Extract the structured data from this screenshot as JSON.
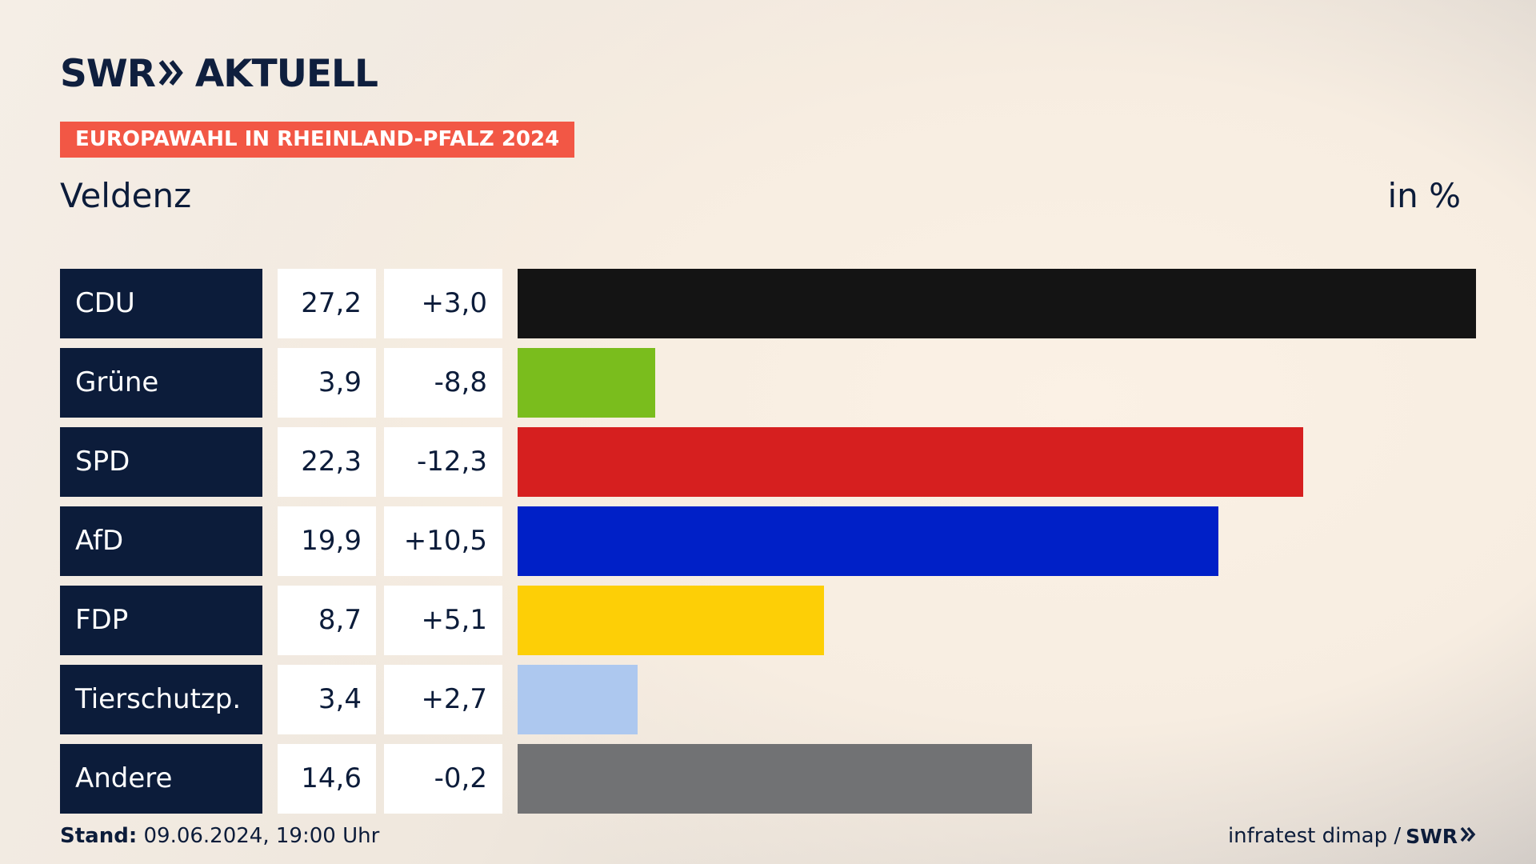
{
  "logo": {
    "brand": "SWR",
    "product": "AKTUELL"
  },
  "tag": "EUROPAWAHL IN RHEINLAND-PFALZ 2024",
  "place": "Veldenz",
  "unit": "in %",
  "footer": {
    "stand_label": "Stand:",
    "stand_value": "09.06.2024, 19:00 Uhr",
    "source": "infratest dimap /",
    "source_brand": "SWR"
  },
  "chart_data": {
    "type": "bar",
    "orientation": "horizontal",
    "categories": [
      "CDU",
      "Grüne",
      "SPD",
      "AfD",
      "FDP",
      "Tierschutzp.",
      "Andere"
    ],
    "values": [
      27.2,
      3.9,
      22.3,
      19.9,
      8.7,
      3.4,
      14.6
    ],
    "value_labels": [
      "27,2",
      "3,9",
      "22,3",
      "19,9",
      "8,7",
      "3,4",
      "14,6"
    ],
    "changes": [
      3.0,
      -8.8,
      -12.3,
      10.5,
      5.1,
      2.7,
      -0.2
    ],
    "change_labels": [
      "+3,0",
      "-8,8",
      "-12,3",
      "+10,5",
      "+5,1",
      "+2,7",
      "-0,2"
    ],
    "colors": [
      "#141414",
      "#7abd1d",
      "#d61f1f",
      "#0020c7",
      "#fdcf06",
      "#adc8ef",
      "#717274"
    ],
    "xlim": [
      0,
      27.2
    ],
    "title": "Veldenz",
    "unit": "in %"
  }
}
